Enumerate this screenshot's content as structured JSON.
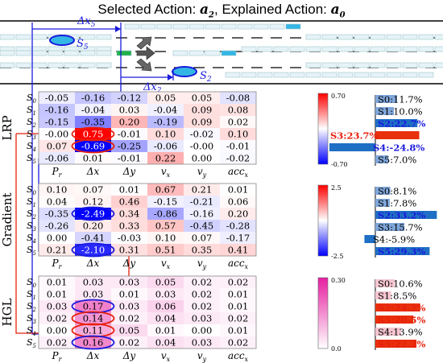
{
  "title": {
    "prefix": "Selected Action: ",
    "selected": "a",
    "selected_sub": "2",
    "mid": ", Explained Action: ",
    "explained": "a",
    "explained_sub": "0"
  },
  "scene": {
    "labels": {
      "dx5": "Δx",
      "dx5_sub": "5",
      "dx2": "Δx",
      "dx2_sub": "2",
      "s5": "S",
      "s5_sub": "5",
      "s2": "S",
      "s2_sub": "2"
    }
  },
  "row_labels": [
    "S0",
    "S1",
    "S2",
    "S3",
    "S4",
    "S5"
  ],
  "col_labels": [
    "Pr",
    "Δx",
    "Δy",
    "vx",
    "vy",
    "accx"
  ],
  "panels": [
    {
      "name": "LRP",
      "colormap": "diverging",
      "vmax": 0.7,
      "colorbar_top": "0.70",
      "colorbar_bottom": "-0.70",
      "values": [
        [
          "-0.05",
          "-0.16",
          "-0.12",
          "0.05",
          "0.05",
          "-0.08"
        ],
        [
          "-0.16",
          "-0.04",
          "0.03",
          "-0.04",
          "0.09",
          "0.08"
        ],
        [
          "-0.15",
          "-0.35",
          "0.20",
          "-0.19",
          "0.09",
          "0.02"
        ],
        [
          "-0.00",
          "0.75",
          "-0.01",
          "0.10",
          "-0.02",
          "0.10"
        ],
        [
          "0.07",
          "-0.69",
          "-0.25",
          "-0.06",
          "-0.00",
          "-0.01"
        ],
        [
          "-0.06",
          "0.01",
          "-0.01",
          "0.22",
          "0.00",
          "-0.02"
        ]
      ],
      "bars": [
        {
          "label": "S0:11.7%",
          "value": 11.7,
          "highlight": ""
        },
        {
          "label": "S1:10.0%",
          "value": 10.0,
          "highlight": ""
        },
        {
          "label": "S2:22.7%",
          "value": 22.7,
          "highlight": "blue"
        },
        {
          "label": "S3:23.7%",
          "value": 23.7,
          "highlight": "red"
        },
        {
          "label": "S4:-24.8%",
          "value": -24.8,
          "highlight": "blue"
        },
        {
          "label": "S5:7.0%",
          "value": 7.0,
          "highlight": ""
        }
      ]
    },
    {
      "name": "Gradient",
      "colormap": "diverging",
      "vmax": 2.5,
      "colorbar_top": "2.5",
      "colorbar_bottom": "-2.5",
      "values": [
        [
          "0.10",
          "0.07",
          "0.01",
          "0.67",
          "0.21",
          "0.01"
        ],
        [
          "0.04",
          "0.12",
          "0.46",
          "-0.15",
          "-0.21",
          "0.06"
        ],
        [
          "-0.35",
          "-2.49",
          "0.34",
          "-0.86",
          "-0.16",
          "0.20"
        ],
        [
          "-0.26",
          "0.20",
          "0.33",
          "0.57",
          "-0.45",
          "-0.28"
        ],
        [
          "0.00",
          "-0.41",
          "-0.03",
          "0.10",
          "0.07",
          "-0.17"
        ],
        [
          "0.21",
          "-2.10",
          "0.31",
          "0.51",
          "0.35",
          "0.41"
        ]
      ],
      "bars": [
        {
          "label": "S0:8.1%",
          "value": 8.1,
          "highlight": ""
        },
        {
          "label": "S1:7.8%",
          "value": 7.8,
          "highlight": ""
        },
        {
          "label": "S2:33.2%",
          "value": 33.2,
          "highlight": "blue"
        },
        {
          "label": "S3:15.7%",
          "value": 15.7,
          "highlight": ""
        },
        {
          "label": "S4:-5.9%",
          "value": -5.9,
          "highlight": ""
        },
        {
          "label": "S5:29.3%",
          "value": 29.3,
          "highlight": "blue"
        }
      ]
    },
    {
      "name": "HGL",
      "colormap": "sequential",
      "vmax": 0.3,
      "colorbar_top": "0.30",
      "colorbar_bottom": "0.0",
      "values": [
        [
          "0.01",
          "0.03",
          "0.03",
          "0.05",
          "0.02",
          "0.02"
        ],
        [
          "0.01",
          "0.03",
          "0.01",
          "0.03",
          "0.02",
          "0.01"
        ],
        [
          "0.03",
          "0.17",
          "0.03",
          "0.06",
          "0.02",
          "0.01"
        ],
        [
          "0.02",
          "0.14",
          "0.02",
          "0.04",
          "0.03",
          "0.02"
        ],
        [
          "0.00",
          "0.11",
          "0.05",
          "0.01",
          "0.00",
          "0.01"
        ],
        [
          "0.02",
          "0.16",
          "0.02",
          "0.04",
          "0.03",
          "0.02"
        ]
      ],
      "bars": [
        {
          "label": "S0:10.6%",
          "value": 10.6,
          "highlight": ""
        },
        {
          "label": "S1:8.5%",
          "value": 8.5,
          "highlight": ""
        },
        {
          "label": "S2:24.2%",
          "value": 24.2,
          "highlight": "red"
        },
        {
          "label": "S3:20.5%",
          "value": 20.5,
          "highlight": "red"
        },
        {
          "label": "S4:13.9%",
          "value": 13.9,
          "highlight": ""
        },
        {
          "label": "S5:22.2%",
          "value": 22.2,
          "highlight": "red"
        }
      ]
    }
  ],
  "colors": {
    "red": "#e8200c",
    "blue": "#1a1adc",
    "bar_blue": "#1f6fc4",
    "bar_blue_light": "#7fa6da",
    "bar_red": "#e8300c",
    "bar_pink": "#f5c5d0",
    "lane_car": "#e6f3f6",
    "ego_car": "#22b14c",
    "target_car": "#34b6e4"
  }
}
